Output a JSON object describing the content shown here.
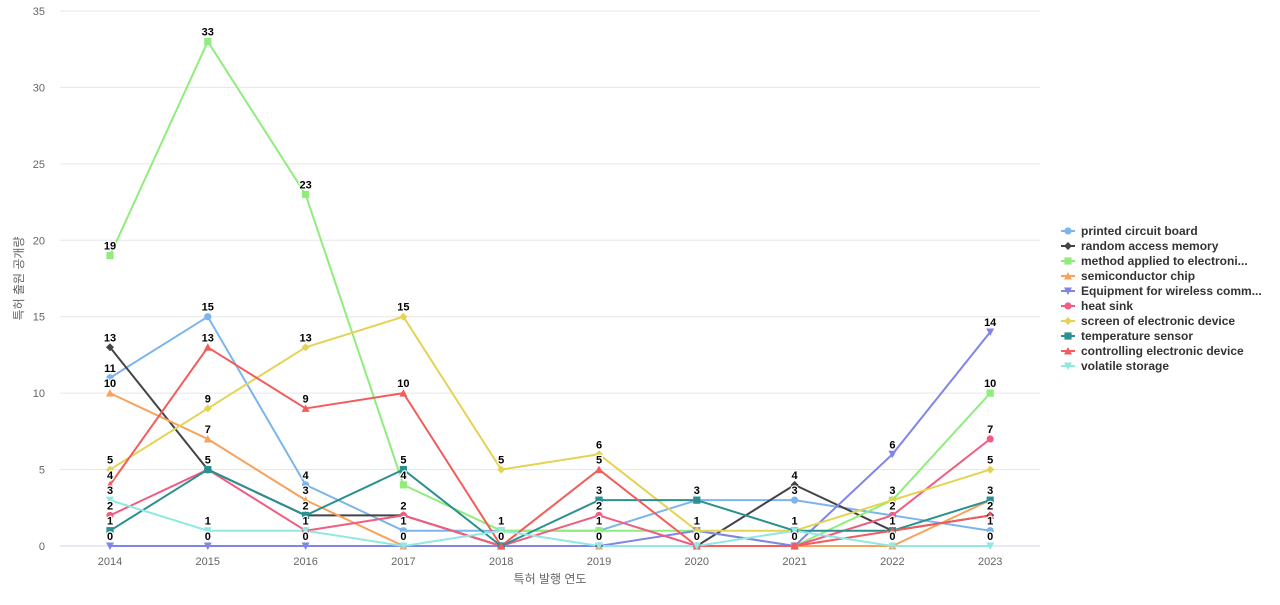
{
  "chart_data": {
    "type": "line",
    "title": "",
    "xlabel": "특허 발행 연도",
    "ylabel": "특허 출원 공개량",
    "x": [
      "2014",
      "2015",
      "2016",
      "2017",
      "2018",
      "2019",
      "2020",
      "2021",
      "2022",
      "2023"
    ],
    "ylim": [
      0,
      35
    ],
    "yticks": [
      0,
      5,
      10,
      15,
      20,
      25,
      30,
      35
    ],
    "grid": true,
    "legend_position": "right",
    "series": [
      {
        "name": "printed circuit board",
        "color": "#7cb5ec",
        "marker": "circle",
        "values": [
          11,
          15,
          4,
          1,
          1,
          1,
          3,
          3,
          2,
          1
        ]
      },
      {
        "name": "random access memory",
        "color": "#434348",
        "marker": "diamond",
        "values": [
          13,
          5,
          2,
          2,
          0,
          0,
          0,
          4,
          1,
          2
        ]
      },
      {
        "name": "method applied to electroni...",
        "color": "#90ed7d",
        "marker": "square",
        "values": [
          19,
          33,
          23,
          4,
          1,
          1,
          1,
          0,
          3,
          10
        ]
      },
      {
        "name": "semiconductor chip",
        "color": "#f7a35c",
        "marker": "triangle",
        "values": [
          10,
          7,
          3,
          0,
          0,
          0,
          0,
          0,
          0,
          3
        ]
      },
      {
        "name": "Equipment for wireless comm...",
        "color": "#8085e9",
        "marker": "triangle-down",
        "values": [
          0,
          0,
          0,
          0,
          0,
          0,
          1,
          0,
          6,
          14
        ]
      },
      {
        "name": "heat sink",
        "color": "#f15c80",
        "marker": "circle",
        "values": [
          2,
          5,
          1,
          2,
          0,
          2,
          0,
          0,
          2,
          7
        ]
      },
      {
        "name": "screen of electronic device",
        "color": "#e4d354",
        "marker": "diamond",
        "values": [
          5,
          9,
          13,
          15,
          5,
          6,
          1,
          1,
          3,
          5
        ]
      },
      {
        "name": "temperature sensor",
        "color": "#2b908f",
        "marker": "square",
        "values": [
          1,
          5,
          2,
          5,
          0,
          3,
          3,
          1,
          1,
          3
        ]
      },
      {
        "name": "controlling electronic device",
        "color": "#f45b5b",
        "marker": "triangle",
        "values": [
          4,
          13,
          9,
          10,
          0,
          5,
          0,
          0,
          1,
          2
        ]
      },
      {
        "name": "volatile storage",
        "color": "#91e8e1",
        "marker": "triangle-down",
        "values": [
          3,
          1,
          1,
          0,
          1,
          0,
          0,
          1,
          0,
          0
        ]
      }
    ],
    "data_labels": [
      {
        "x": "2014",
        "text": "19"
      },
      {
        "x": "2014",
        "text": "13"
      },
      {
        "x": "2014",
        "text": "11"
      },
      {
        "x": "2014",
        "text": "10"
      },
      {
        "x": "2014",
        "text": "5"
      },
      {
        "x": "2014",
        "text": "4"
      },
      {
        "x": "2014",
        "text": "3"
      },
      {
        "x": "2014",
        "text": "2"
      },
      {
        "x": "2014",
        "text": "1"
      },
      {
        "x": "2014",
        "text": "0"
      },
      {
        "x": "2015",
        "text": "33"
      },
      {
        "x": "2015",
        "text": "15"
      },
      {
        "x": "2015",
        "text": "13"
      },
      {
        "x": "2015",
        "text": "9"
      },
      {
        "x": "2015",
        "text": "7"
      },
      {
        "x": "2015",
        "text": "5"
      },
      {
        "x": "2015",
        "text": "1"
      },
      {
        "x": "2015",
        "text": "0"
      },
      {
        "x": "2016",
        "text": "23"
      },
      {
        "x": "2016",
        "text": "13"
      },
      {
        "x": "2016",
        "text": "9"
      },
      {
        "x": "2016",
        "text": "4"
      },
      {
        "x": "2016",
        "text": "3"
      },
      {
        "x": "2016",
        "text": "2"
      },
      {
        "x": "2016",
        "text": "1"
      },
      {
        "x": "2016",
        "text": "0"
      },
      {
        "x": "2017",
        "text": "15"
      },
      {
        "x": "2017",
        "text": "10"
      },
      {
        "x": "2017",
        "text": "5"
      },
      {
        "x": "2017",
        "text": "4"
      },
      {
        "x": "2017",
        "text": "2"
      },
      {
        "x": "2017",
        "text": "1"
      },
      {
        "x": "2017",
        "text": "0"
      },
      {
        "x": "2018",
        "text": "5"
      },
      {
        "x": "2018",
        "text": "1"
      },
      {
        "x": "2018",
        "text": "0"
      },
      {
        "x": "2019",
        "text": "6"
      },
      {
        "x": "2019",
        "text": "5"
      },
      {
        "x": "2019",
        "text": "3"
      },
      {
        "x": "2019",
        "text": "2"
      },
      {
        "x": "2019",
        "text": "1"
      },
      {
        "x": "2019",
        "text": "0"
      },
      {
        "x": "2020",
        "text": "3"
      },
      {
        "x": "2020",
        "text": "1"
      },
      {
        "x": "2020",
        "text": "0"
      },
      {
        "x": "2021",
        "text": "4"
      },
      {
        "x": "2021",
        "text": "3"
      },
      {
        "x": "2021",
        "text": "1"
      },
      {
        "x": "2021",
        "text": "0"
      },
      {
        "x": "2022",
        "text": "6"
      },
      {
        "x": "2022",
        "text": "3"
      },
      {
        "x": "2022",
        "text": "2"
      },
      {
        "x": "2022",
        "text": "1"
      },
      {
        "x": "2022",
        "text": "0"
      },
      {
        "x": "2023",
        "text": "14"
      },
      {
        "x": "2023",
        "text": "10"
      },
      {
        "x": "2023",
        "text": "7"
      },
      {
        "x": "2023",
        "text": "5"
      },
      {
        "x": "2023",
        "text": "3"
      },
      {
        "x": "2023",
        "text": "2"
      },
      {
        "x": "2023",
        "text": "1"
      },
      {
        "x": "2023",
        "text": "0"
      }
    ]
  }
}
